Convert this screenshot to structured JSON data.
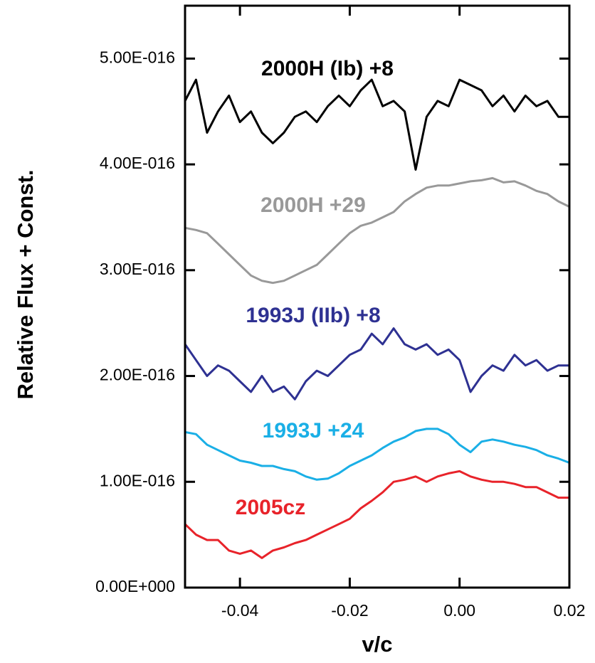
{
  "chart_data": {
    "type": "line",
    "xlabel": "v/c",
    "ylabel": "Relative Flux + Const.",
    "x": [
      -0.05,
      -0.048,
      -0.046,
      -0.044,
      -0.042,
      -0.04,
      -0.038,
      -0.036,
      -0.034,
      -0.032,
      -0.03,
      -0.028,
      -0.026,
      -0.024,
      -0.022,
      -0.02,
      -0.018,
      -0.016,
      -0.014,
      -0.012,
      -0.01,
      -0.008,
      -0.006,
      -0.004,
      -0.002,
      0,
      0.002,
      0.004,
      0.006,
      0.008,
      0.01,
      0.012,
      0.014,
      0.016,
      0.018,
      0.02
    ],
    "xlim": [
      -0.05,
      0.02
    ],
    "xticks": [
      -0.04,
      -0.02,
      {
        "value": 0,
        "label": "0.00"
      },
      0.02
    ],
    "ylim": [
      0,
      5.5e-16
    ],
    "yticks": [
      {
        "value": 0,
        "label": "0.00E+000"
      },
      {
        "value": 1e-16,
        "label": "1.00E-016"
      },
      {
        "value": 2e-16,
        "label": "2.00E-016"
      },
      {
        "value": 3e-16,
        "label": "3.00E-016"
      },
      {
        "value": 4e-16,
        "label": "4.00E-016"
      },
      {
        "value": 5e-16,
        "label": "5.00E-016"
      }
    ],
    "grid": false,
    "series": [
      {
        "name": "2000H (Ib) +8",
        "color": "#000000",
        "values": [
          4.6e-16,
          4.8e-16,
          4.3e-16,
          4.5e-16,
          4.65e-16,
          4.4e-16,
          4.5e-16,
          4.3e-16,
          4.2e-16,
          4.3e-16,
          4.45e-16,
          4.5e-16,
          4.4e-16,
          4.55e-16,
          4.65e-16,
          4.55e-16,
          4.7e-16,
          4.8e-16,
          4.55e-16,
          4.6e-16,
          4.5e-16,
          3.95e-16,
          4.45e-16,
          4.6e-16,
          4.55e-16,
          4.8e-16,
          4.75e-16,
          4.7e-16,
          4.55e-16,
          4.65e-16,
          4.5e-16,
          4.65e-16,
          4.55e-16,
          4.6e-16,
          4.45e-16,
          4.45e-16
        ]
      },
      {
        "name": "2000H +29",
        "color": "#999999",
        "values": [
          3.4e-16,
          3.38e-16,
          3.35e-16,
          3.25e-16,
          3.15e-16,
          3.05e-16,
          2.95e-16,
          2.9e-16,
          2.88e-16,
          2.9e-16,
          2.95e-16,
          3e-16,
          3.05e-16,
          3.15e-16,
          3.25e-16,
          3.35e-16,
          3.42e-16,
          3.45e-16,
          3.5e-16,
          3.55e-16,
          3.65e-16,
          3.72e-16,
          3.78e-16,
          3.8e-16,
          3.8e-16,
          3.82e-16,
          3.84e-16,
          3.85e-16,
          3.87e-16,
          3.83e-16,
          3.84e-16,
          3.8e-16,
          3.75e-16,
          3.72e-16,
          3.65e-16,
          3.6e-16
        ]
      },
      {
        "name": "1993J (IIb) +8",
        "color": "#2e3192",
        "values": [
          2.3e-16,
          2.15e-16,
          2e-16,
          2.1e-16,
          2.05e-16,
          1.95e-16,
          1.85e-16,
          2e-16,
          1.85e-16,
          1.9e-16,
          1.78e-16,
          1.95e-16,
          2.05e-16,
          2e-16,
          2.1e-16,
          2.2e-16,
          2.25e-16,
          2.4e-16,
          2.3e-16,
          2.45e-16,
          2.3e-16,
          2.25e-16,
          2.3e-16,
          2.2e-16,
          2.25e-16,
          2.15e-16,
          1.85e-16,
          2e-16,
          2.1e-16,
          2.05e-16,
          2.2e-16,
          2.1e-16,
          2.15e-16,
          2.05e-16,
          2.1e-16,
          2.1e-16
        ]
      },
      {
        "name": "1993J +24",
        "color": "#1aafe6",
        "values": [
          1.47e-16,
          1.45e-16,
          1.35e-16,
          1.3e-16,
          1.25e-16,
          1.2e-16,
          1.18e-16,
          1.15e-16,
          1.15e-16,
          1.12e-16,
          1.1e-16,
          1.05e-16,
          1.02e-16,
          1.03e-16,
          1.08e-16,
          1.15e-16,
          1.2e-16,
          1.25e-16,
          1.32e-16,
          1.38e-16,
          1.42e-16,
          1.48e-16,
          1.5e-16,
          1.5e-16,
          1.45e-16,
          1.35e-16,
          1.28e-16,
          1.38e-16,
          1.4e-16,
          1.38e-16,
          1.35e-16,
          1.33e-16,
          1.3e-16,
          1.25e-16,
          1.22e-16,
          1.18e-16
        ]
      },
      {
        "name": "2005cz",
        "color": "#e8232a",
        "values": [
          6e-17,
          5e-17,
          4.5e-17,
          4.5e-17,
          3.5e-17,
          3.2e-17,
          3.5e-17,
          2.8e-17,
          3.5e-17,
          3.8e-17,
          4.2e-17,
          4.5e-17,
          5e-17,
          5.5e-17,
          6e-17,
          6.5e-17,
          7.5e-17,
          8.2e-17,
          9e-17,
          1e-16,
          1.02e-16,
          1.05e-16,
          1e-16,
          1.05e-16,
          1.08e-16,
          1.1e-16,
          1.05e-16,
          1.02e-16,
          1e-16,
          1e-16,
          9.8e-17,
          9.5e-17,
          9.5e-17,
          9e-17,
          8.5e-17,
          8.5e-17
        ]
      }
    ]
  }
}
